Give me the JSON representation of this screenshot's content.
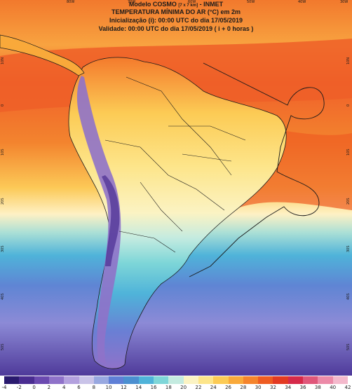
{
  "header": {
    "line1_main": "Modelo COSMO",
    "line1_small": "[7 x 7 km]",
    "line1_tail": "- INMET",
    "line2": "TEMPERATURA MÍNIMA DO AR (°C) em 2m",
    "line3": "Inicialização (i): 00:00 UTC do dia 17/05/2019",
    "line4": "Validade: 00:00 UTC do dia 17/05/2019 ( i + 0 horas )"
  },
  "coords": {
    "top": [
      "80W",
      "70W",
      "60W",
      "50W",
      "40W",
      "30W"
    ],
    "left": [
      "10N",
      "0",
      "10S",
      "20S",
      "30S",
      "40S",
      "50S"
    ],
    "right": [
      "10N",
      "0",
      "10S",
      "20S",
      "30S",
      "40S",
      "50S"
    ]
  },
  "colorbar": {
    "labels": [
      "-4",
      "-2",
      "0",
      "2",
      "4",
      "6",
      "8",
      "10",
      "12",
      "14",
      "16",
      "18",
      "20",
      "22",
      "24",
      "26",
      "28",
      "30",
      "32",
      "34",
      "36",
      "38",
      "40",
      "42"
    ],
    "colors": [
      "#2a1a6e",
      "#4a2d91",
      "#6b4ab0",
      "#8f72c9",
      "#b3a1de",
      "#c9c3e8",
      "#98a8e0",
      "#5f7fd6",
      "#4b8fd0",
      "#4fb3d9",
      "#7ed6d8",
      "#c4ebe0",
      "#fbf3c3",
      "#fde58a",
      "#fccb55",
      "#f9a93a",
      "#f5842c",
      "#ee5c22",
      "#e33a22",
      "#d62a4a",
      "#e0577a",
      "#ec8aa8",
      "#f4b9cc"
    ]
  }
}
